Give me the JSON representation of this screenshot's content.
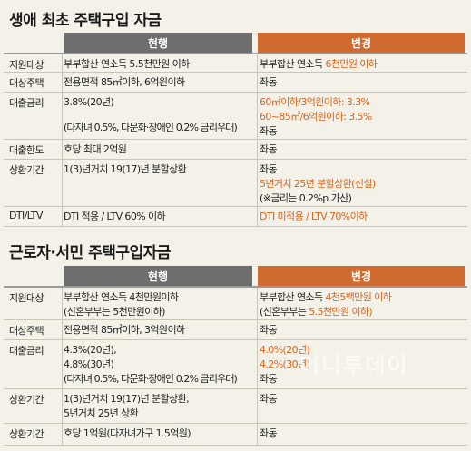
{
  "section1": {
    "title": "생애 최초 주택구입 자금",
    "header_current": "현행",
    "header_change": "변경",
    "rows": [
      {
        "label": "지원대상",
        "current": [
          "부부합산 연소득 5.5천만원 이하"
        ],
        "change": [
          {
            "t": "부부합산 연소득 ",
            "o": false
          },
          {
            "t": "6천만원 이하",
            "o": true
          }
        ]
      },
      {
        "label": "대상주택",
        "current": [
          "전용면적 85㎡이하, 6억원이하"
        ],
        "change": [
          {
            "t": "좌동",
            "o": false
          }
        ]
      },
      {
        "label": "대출금리",
        "current": [
          "3.8%(20년)",
          "",
          "(다자녀 0.5%, 다문화·장애인 0.2% 금리우대)"
        ],
        "change": [
          {
            "t": "60㎡이하/3억원이하: 3.3%",
            "o": true
          },
          {
            "t": "60~85㎡/6억원이하: 3.5%",
            "o": true
          },
          {
            "t": "좌동",
            "o": false
          }
        ]
      },
      {
        "label": "대출한도",
        "current": [
          "호당 최대 2억원"
        ],
        "change": [
          {
            "t": "좌동",
            "o": false
          }
        ]
      },
      {
        "label": "상환기간",
        "current": [
          "1(3)년거치 19(17)년 분할상환"
        ],
        "change": [
          {
            "t": "좌동",
            "o": false
          },
          {
            "t": "5년거치 25년 분할상환(신설)",
            "o": true
          },
          {
            "t": "(※금리는 0.2%p 가산)",
            "o": false
          }
        ]
      },
      {
        "label": "DTI/LTV",
        "current": [
          "DTI 적용 / LTV 60% 이하"
        ],
        "change": [
          {
            "t": "DTI 미적용 / LTV 70%이하",
            "o": true
          }
        ]
      }
    ]
  },
  "section2": {
    "title": "근로자·서민 주택구입자금",
    "header_current": "현행",
    "header_change": "변경",
    "rows": [
      {
        "label": "지원대상",
        "current": [
          "부부합산 연소득 4천만원이하",
          "(신혼부부는 5천만원이하)"
        ],
        "change": [
          {
            "t": "부부합산 연소득 ",
            "o": false,
            "join": "4천5백만원 이하"
          },
          {
            "t": "(신혼부부는 ",
            "o": false,
            "join": "5.5천만원 이하)"
          }
        ]
      },
      {
        "label": "대상주택",
        "current": [
          "전용면적 85㎡이하, 3억원이하"
        ],
        "change": [
          {
            "t": "좌동",
            "o": false
          }
        ]
      },
      {
        "label": "대출금리",
        "current": [
          "4.3%(20년),",
          "4.8%(30년)",
          "(다자녀 0.5%, 다문화·장애인 0.2% 금리우대)"
        ],
        "change": [
          {
            "t": "4.0%(20년)",
            "o": true
          },
          {
            "t": "4.2%(30년)",
            "o": true
          },
          {
            "t": "좌동",
            "o": false
          }
        ]
      },
      {
        "label": "상환기간",
        "current": [
          "1(3)년거치 19(17)년 분할상환,",
          "5년거치 25년 상환"
        ],
        "change": [
          {
            "t": "좌동",
            "o": false
          }
        ]
      },
      {
        "label": "상환기간",
        "current": [
          "호당 1억원(다자녀가구 1.5억원)"
        ],
        "change": [
          {
            "t": "좌동",
            "o": false
          }
        ]
      }
    ]
  },
  "watermark": "머니투데이"
}
